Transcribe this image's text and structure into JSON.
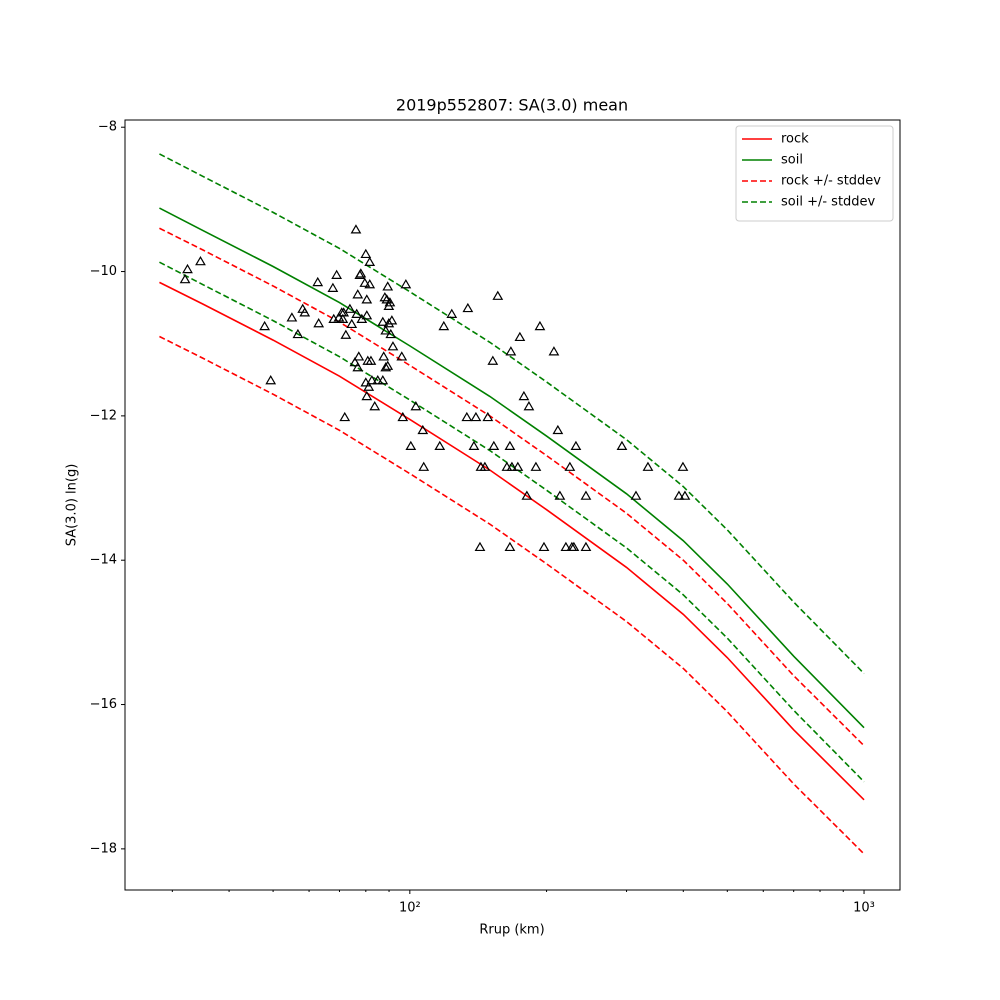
{
  "chart_data": {
    "type": "line",
    "title": "2019p552807: SA(3.0) mean",
    "xlabel": "Rrup (km)",
    "ylabel": "SA(3.0) ln(g)",
    "xscale": "log",
    "xlim": [
      23.6,
      1200
    ],
    "ylim": [
      -18.57,
      -7.9
    ],
    "xticks": [
      {
        "value": 100,
        "label": "10²"
      },
      {
        "value": 1000,
        "label": "10³"
      }
    ],
    "xminorticks": [
      30,
      40,
      50,
      60,
      70,
      80,
      90,
      200,
      300,
      400,
      500,
      600,
      700,
      800,
      900
    ],
    "yticks": [
      {
        "value": -8,
        "label": "−8"
      },
      {
        "value": -10,
        "label": "−10"
      },
      {
        "value": -12,
        "label": "−12"
      },
      {
        "value": -14,
        "label": "−14"
      },
      {
        "value": -16,
        "label": "−16"
      },
      {
        "value": -18,
        "label": "−18"
      }
    ],
    "legend": "upper right",
    "x": [
      28.1,
      35,
      50,
      70,
      100,
      150,
      200,
      300,
      400,
      500,
      700,
      1000
    ],
    "series": [
      {
        "name": "rock",
        "color": "#ff0000",
        "dashed": false,
        "lines": [
          [
            -10.15,
            -10.45,
            -10.95,
            -11.45,
            -12.05,
            -12.75,
            -13.3,
            -14.1,
            -14.75,
            -15.35,
            -16.35,
            -17.32
          ]
        ]
      },
      {
        "name": "soil",
        "color": "#008000",
        "dashed": false,
        "lines": [
          [
            -9.12,
            -9.43,
            -9.93,
            -10.43,
            -11.03,
            -11.73,
            -12.28,
            -13.08,
            -13.73,
            -14.33,
            -15.33,
            -16.32
          ]
        ]
      },
      {
        "name": "rock +/- stddev",
        "color": "#ff0000",
        "dashed": true,
        "lines": [
          [
            -9.4,
            -9.7,
            -10.2,
            -10.7,
            -11.3,
            -12.0,
            -12.55,
            -13.35,
            -14.0,
            -14.6,
            -15.6,
            -16.57
          ],
          [
            -10.9,
            -11.2,
            -11.7,
            -12.2,
            -12.8,
            -13.5,
            -14.05,
            -14.85,
            -15.5,
            -16.1,
            -17.1,
            -18.07
          ]
        ]
      },
      {
        "name": "soil +/- stddev",
        "color": "#008000",
        "dashed": true,
        "lines": [
          [
            -8.37,
            -8.68,
            -9.18,
            -9.68,
            -10.28,
            -10.98,
            -11.53,
            -12.33,
            -12.98,
            -13.58,
            -14.58,
            -15.57
          ],
          [
            -9.87,
            -10.18,
            -10.68,
            -11.18,
            -11.78,
            -12.48,
            -13.03,
            -13.83,
            -14.48,
            -15.08,
            -16.08,
            -17.07
          ]
        ]
      }
    ],
    "points": {
      "marker": "triangle",
      "color": "#000000",
      "x": [
        32.0,
        32.4,
        34.6,
        47.9,
        49.4,
        55.0,
        56.7,
        58.1,
        58.7,
        62.7,
        63.0,
        67.7,
        68.0,
        69.0,
        69.8,
        70.8,
        71.2,
        71.5,
        71.9,
        72.3,
        73.8,
        74.5,
        75.7,
        76.1,
        76.4,
        76.8,
        76.8,
        77.2,
        77.6,
        78.0,
        78.4,
        79.6,
        80.0,
        80.0,
        80.4,
        80.4,
        80.4,
        80.8,
        81.2,
        81.6,
        81.6,
        82.1,
        82.5,
        83.7,
        85.0,
        87.2,
        87.2,
        87.6,
        88.1,
        88.5,
        88.5,
        89.0,
        89.4,
        89.4,
        89.9,
        89.9,
        90.4,
        90.8,
        91.3,
        91.8,
        96.0,
        96.5,
        98.0,
        100.5,
        103.1,
        106.8,
        107.3,
        116.4,
        118.8,
        123.7,
        133.5,
        134.2,
        138.4,
        139.8,
        142.7,
        143.4,
        146.3,
        148.5,
        152.3,
        153.1,
        156.2,
        163.6,
        166.1,
        166.9,
        167.8,
        172.9,
        174.7,
        178.3,
        181.0,
        182.9,
        189.5,
        193.4,
        197.4,
        207.6,
        211.8,
        214.0,
        220.6,
        225.1,
        227.4,
        229.7,
        232.1,
        244.2,
        244.2,
        293.1,
        314.7,
        334.4,
        391.3,
        399.3,
        403.4,
        166.1
      ],
      "y": [
        -10.12,
        -9.98,
        -9.87,
        -10.77,
        -11.52,
        -10.65,
        -10.88,
        -10.53,
        -10.58,
        -10.16,
        -10.73,
        -10.24,
        -10.67,
        -10.06,
        -10.65,
        -10.58,
        -10.67,
        -10.58,
        -12.03,
        -10.89,
        -10.53,
        -10.74,
        -11.27,
        -9.43,
        -10.6,
        -10.33,
        -11.34,
        -11.19,
        -10.06,
        -10.04,
        -10.67,
        -10.17,
        -9.77,
        -11.55,
        -10.4,
        -10.62,
        -11.74,
        -11.25,
        -11.61,
        -9.88,
        -10.19,
        -11.25,
        -11.52,
        -11.88,
        -11.52,
        -11.52,
        -10.71,
        -11.19,
        -10.37,
        -11.34,
        -10.83,
        -10.4,
        -11.32,
        -10.22,
        -10.49,
        -10.73,
        -10.44,
        -10.88,
        -10.69,
        -11.05,
        -11.19,
        -12.03,
        -10.19,
        -12.43,
        -11.88,
        -12.21,
        -12.72,
        -12.43,
        -10.77,
        -10.6,
        -12.03,
        -10.52,
        -12.43,
        -12.03,
        -13.83,
        -12.72,
        -12.72,
        -12.03,
        -11.25,
        -12.43,
        -10.35,
        -12.72,
        -12.43,
        -11.12,
        -12.72,
        -12.72,
        -10.92,
        -11.74,
        -13.12,
        -11.88,
        -12.72,
        -10.77,
        -13.83,
        -11.12,
        -12.21,
        -13.12,
        -13.83,
        -12.72,
        -13.83,
        -13.83,
        -12.43,
        -13.12,
        -13.83,
        -12.43,
        -13.12,
        -12.72,
        -13.12,
        -12.72,
        -13.12,
        -13.83
      ]
    }
  }
}
